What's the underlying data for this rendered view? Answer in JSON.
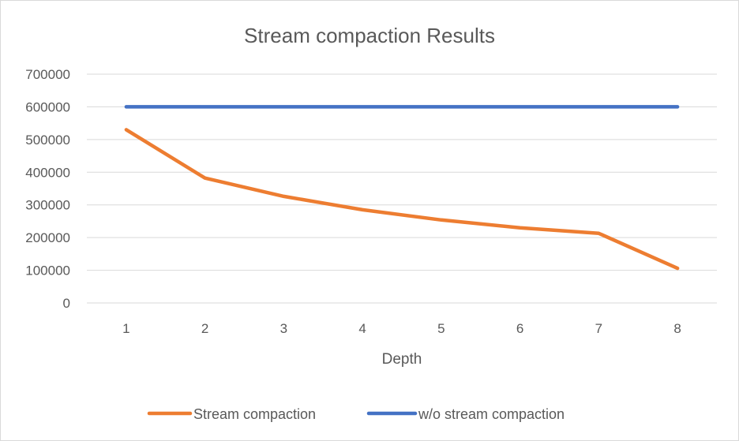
{
  "chart_data": {
    "type": "line",
    "title": "Stream compaction Results",
    "xlabel": "Depth",
    "ylabel": "",
    "x": [
      "1",
      "2",
      "3",
      "4",
      "5",
      "6",
      "7",
      "8"
    ],
    "ylim": [
      0,
      700000
    ],
    "yticks": [
      "0",
      "100000",
      "200000",
      "300000",
      "400000",
      "500000",
      "600000",
      "700000"
    ],
    "grid": true,
    "legend_position": "bottom",
    "series": [
      {
        "name": "Stream compaction",
        "color": "#ed7d31",
        "values": [
          530000,
          382000,
          326000,
          285000,
          254000,
          230000,
          213000,
          106000
        ]
      },
      {
        "name": "w/o stream compaction",
        "color": "#4472c4",
        "values": [
          600000,
          600000,
          600000,
          600000,
          600000,
          600000,
          600000,
          600000
        ]
      }
    ]
  }
}
